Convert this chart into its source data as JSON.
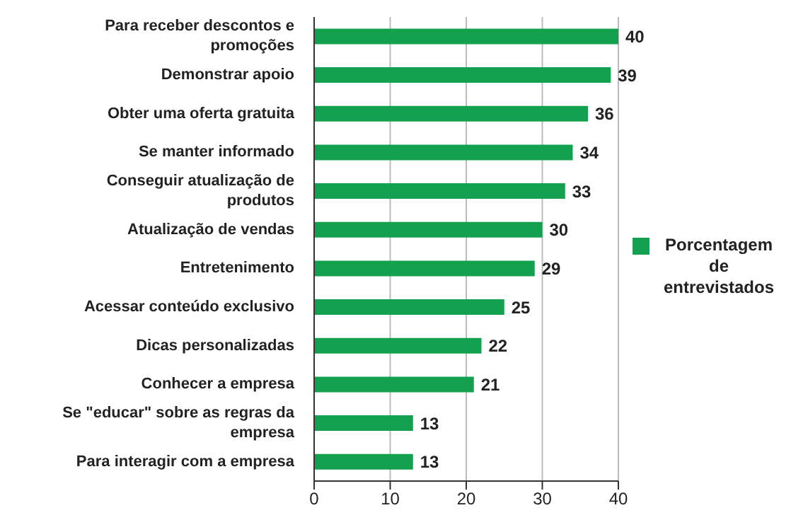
{
  "chart_data": {
    "type": "bar",
    "orientation": "horizontal",
    "categories": [
      "Para receber descontos e promoções",
      "Demonstrar apoio",
      "Obter uma oferta gratuita",
      "Se manter informado",
      "Conseguir atualização de produtos",
      "Atualização de vendas",
      "Entretenimento",
      "Acessar conteúdo exclusivo",
      "Dicas personalizadas",
      "Conhecer a empresa",
      "Se \"educar\" sobre as regras da empresa",
      "Para interagir com a empresa"
    ],
    "series": [
      {
        "name": "Porcentagem de entrevistados",
        "color": "#13a14f",
        "values": [
          40,
          39,
          36,
          34,
          33,
          30,
          29,
          25,
          22,
          21,
          13,
          13
        ]
      }
    ],
    "xlim": [
      0,
      40
    ],
    "xticks": [
      0,
      10,
      20,
      30,
      40
    ],
    "grid": "x",
    "legend": "right",
    "data_labels": true
  }
}
